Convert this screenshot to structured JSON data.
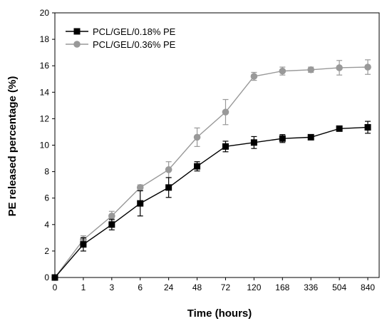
{
  "chart_data": {
    "type": "line",
    "title": "",
    "xlabel": "Time (hours)",
    "ylabel": "PE released percentage (%)",
    "ylim": [
      0,
      20
    ],
    "yticks": [
      0,
      2,
      4,
      6,
      8,
      10,
      12,
      14,
      16,
      18,
      20
    ],
    "x_scale": "categorical",
    "categories": [
      "0",
      "1",
      "3",
      "6",
      "24",
      "48",
      "72",
      "120",
      "168",
      "336",
      "504",
      "840"
    ],
    "grid": false,
    "legend_position": "top-left",
    "series": [
      {
        "name": "PCL/GEL/0.18% PE",
        "color": "#000000",
        "marker": "square",
        "values": [
          0,
          2.5,
          4.0,
          5.6,
          6.8,
          8.4,
          9.9,
          10.2,
          10.5,
          10.6,
          11.25,
          11.35
        ],
        "errors": [
          0,
          0.5,
          0.4,
          0.95,
          0.75,
          0.35,
          0.4,
          0.45,
          0.3,
          0.15,
          0.15,
          0.45
        ]
      },
      {
        "name": "PCL/GEL/0.36% PE",
        "color": "#999999",
        "marker": "circle",
        "values": [
          0,
          2.85,
          4.65,
          6.8,
          8.15,
          10.6,
          12.5,
          15.2,
          15.6,
          15.7,
          15.85,
          15.9
        ],
        "errors": [
          0,
          0.3,
          0.35,
          0.2,
          0.6,
          0.7,
          0.95,
          0.3,
          0.3,
          0.2,
          0.55,
          0.55
        ]
      }
    ]
  }
}
